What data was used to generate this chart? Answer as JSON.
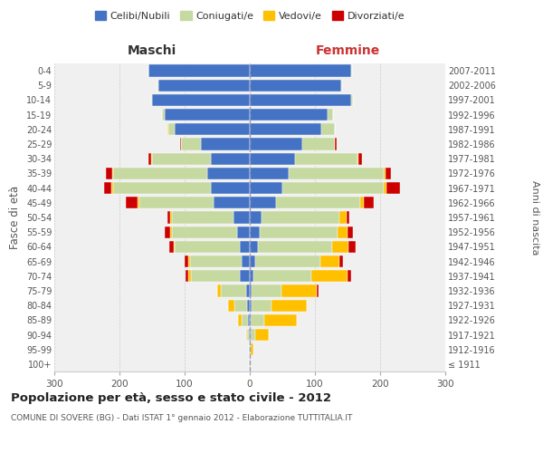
{
  "age_groups": [
    "100+",
    "95-99",
    "90-94",
    "85-89",
    "80-84",
    "75-79",
    "70-74",
    "65-69",
    "60-64",
    "55-59",
    "50-54",
    "45-49",
    "40-44",
    "35-39",
    "30-34",
    "25-29",
    "20-24",
    "15-19",
    "10-14",
    "5-9",
    "0-4"
  ],
  "birth_years": [
    "≤ 1911",
    "1912-1916",
    "1917-1921",
    "1922-1926",
    "1927-1931",
    "1932-1936",
    "1937-1941",
    "1942-1946",
    "1947-1951",
    "1952-1956",
    "1957-1961",
    "1962-1966",
    "1967-1971",
    "1972-1976",
    "1977-1981",
    "1982-1986",
    "1987-1991",
    "1992-1996",
    "1997-2001",
    "2002-2006",
    "2007-2011"
  ],
  "colors": {
    "celibi": "#4472c4",
    "coniugati": "#c5d9a0",
    "vedovi": "#ffc000",
    "divorziati": "#cc0000"
  },
  "maschi": {
    "celibi": [
      1,
      1,
      2,
      3,
      4,
      5,
      15,
      12,
      15,
      20,
      25,
      55,
      60,
      65,
      60,
      75,
      115,
      130,
      150,
      140,
      155
    ],
    "coniugati": [
      0,
      0,
      2,
      10,
      20,
      40,
      75,
      80,
      100,
      100,
      95,
      115,
      150,
      145,
      90,
      30,
      10,
      5,
      2,
      1,
      1
    ],
    "vedovi": [
      0,
      1,
      2,
      5,
      10,
      5,
      5,
      3,
      2,
      2,
      2,
      2,
      2,
      1,
      1,
      1,
      1,
      0,
      0,
      0,
      0
    ],
    "divorziati": [
      0,
      0,
      0,
      0,
      0,
      0,
      3,
      5,
      6,
      8,
      5,
      18,
      12,
      10,
      4,
      1,
      0,
      0,
      0,
      0,
      0
    ]
  },
  "femmine": {
    "celibi": [
      0,
      0,
      1,
      2,
      3,
      3,
      5,
      8,
      12,
      15,
      18,
      40,
      50,
      60,
      70,
      80,
      110,
      120,
      155,
      140,
      155
    ],
    "coniugati": [
      0,
      2,
      8,
      20,
      30,
      45,
      90,
      100,
      115,
      120,
      120,
      130,
      155,
      145,
      95,
      50,
      20,
      8,
      3,
      2,
      2
    ],
    "vedovi": [
      1,
      3,
      20,
      50,
      55,
      55,
      55,
      30,
      25,
      15,
      10,
      5,
      5,
      3,
      2,
      1,
      1,
      0,
      0,
      0,
      0
    ],
    "divorziati": [
      0,
      0,
      0,
      0,
      0,
      2,
      5,
      5,
      10,
      8,
      5,
      15,
      20,
      8,
      5,
      2,
      0,
      0,
      0,
      0,
      0
    ]
  },
  "xlim": 300,
  "title": "Popolazione per età, sesso e stato civile - 2012",
  "subtitle": "COMUNE DI SOVERE (BG) - Dati ISTAT 1° gennaio 2012 - Elaborazione TUTTITALIA.IT",
  "ylabel": "Fasce di età",
  "ylabel_right": "Anni di nascita",
  "xlabel_left": "Maschi",
  "xlabel_right": "Femmine",
  "legend_labels": [
    "Celibi/Nubili",
    "Coniugati/e",
    "Vedovi/e",
    "Divorziati/e"
  ],
  "bg_color": "#f0f0f0"
}
